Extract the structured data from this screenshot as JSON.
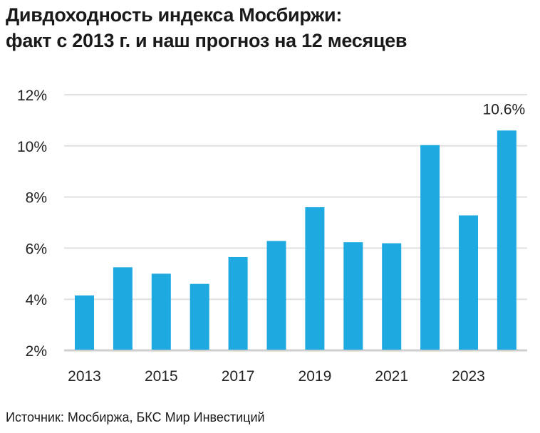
{
  "chart_data": {
    "type": "bar",
    "title": [
      "Дивдоходность индекса Мосбиржи:",
      "факт с 2013 г. и наш прогноз на 12 месяцев"
    ],
    "categories": [
      "2013",
      "2014",
      "2015",
      "2016",
      "2017",
      "2018",
      "2019",
      "2020",
      "2021",
      "2022",
      "2023",
      "2024"
    ],
    "x_tick_labels": [
      "2013",
      "2015",
      "2017",
      "2019",
      "2021",
      "2023"
    ],
    "values": [
      4.15,
      5.25,
      5.0,
      4.6,
      5.65,
      6.28,
      7.6,
      6.23,
      6.19,
      10.03,
      7.28,
      10.6
    ],
    "y_tick_labels": [
      "2%",
      "4%",
      "6%",
      "8%",
      "10%",
      "12%"
    ],
    "ylim": [
      2,
      12
    ],
    "grid": true,
    "data_labels": [
      {
        "category": "2024",
        "text": "10.6%"
      }
    ],
    "bar_color": "#1ea9e1",
    "source": "Источник: Мосбиржа, БКС Мир Инвестиций"
  }
}
